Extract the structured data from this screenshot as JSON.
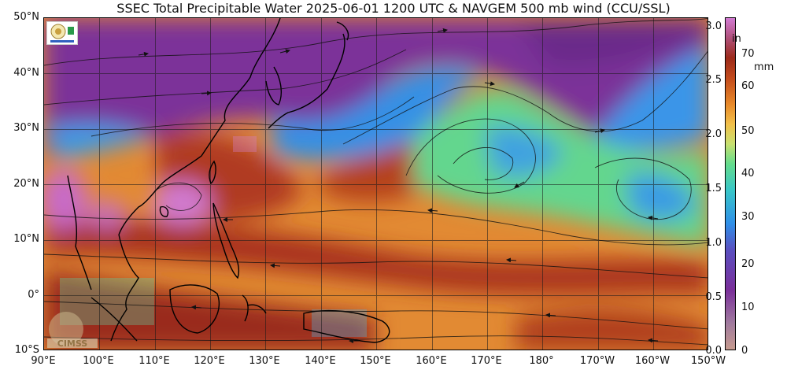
{
  "title": "SSEC Total Precipitable Water  2025-06-01 1200 UTC & NAVGEM 500 mb wind (CCU/SSL)",
  "map": {
    "lat_labels": [
      "50°N",
      "40°N",
      "30°N",
      "20°N",
      "10°N",
      "0°",
      "10°S"
    ],
    "lon_labels": [
      "90°E",
      "100°E",
      "110°E",
      "120°E",
      "130°E",
      "140°E",
      "150°E",
      "160°E",
      "170°E",
      "180°",
      "170°W",
      "160°W",
      "150°W"
    ],
    "extent": {
      "lon_min": 90,
      "lon_max": 210,
      "lat_min": -10,
      "lat_max": 50
    }
  },
  "colorbar": {
    "inch_unit": "in",
    "mm_unit": "mm",
    "inch_ticks": [
      "3.0",
      "2.5",
      "2.0",
      "1.5",
      "1.0",
      "0.5",
      "0.0"
    ],
    "mm_ticks": [
      "70",
      "60",
      "50",
      "40",
      "30",
      "20",
      "10",
      "0"
    ]
  },
  "logos": {
    "top_left": "SSEC / CIMSS logo",
    "bottom_left": "CIMSS"
  },
  "colors": {
    "dry_purple": "#7a2f9a",
    "low_blue": "#2f8fe8",
    "mid_green": "#64dc8c",
    "orange": "#e88a2a",
    "dark_red": "#9c2a1a",
    "pink_max": "#d27ad2"
  }
}
